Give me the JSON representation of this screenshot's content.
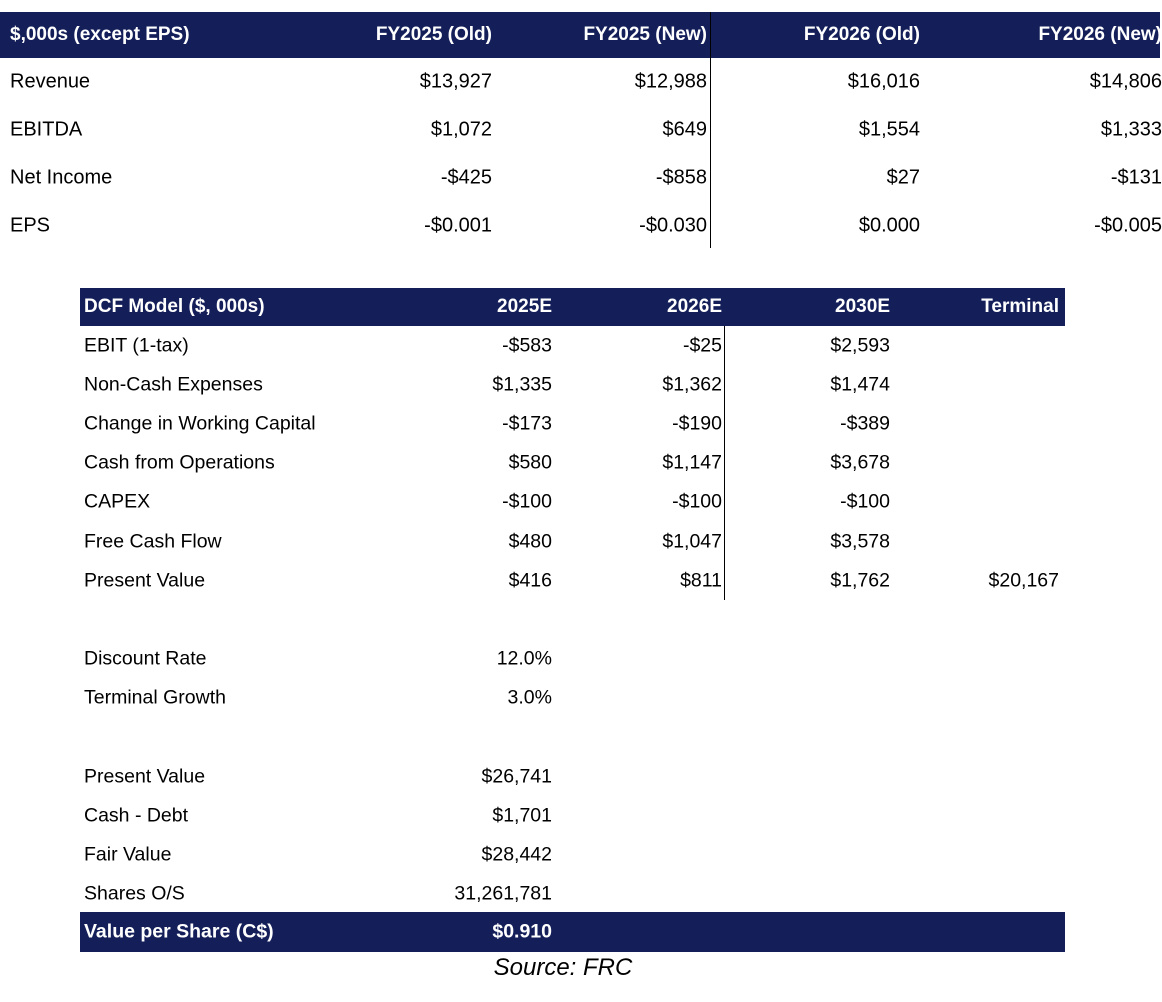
{
  "estimates": {
    "headers": [
      "$,000s (except EPS)",
      "FY2025 (Old)",
      "FY2025 (New)",
      "FY2026 (Old)",
      "FY2026 (New)"
    ],
    "rows": [
      [
        "Revenue",
        "$13,927",
        "$12,988",
        "$16,016",
        "$14,806"
      ],
      [
        "EBITDA",
        "$1,072",
        "$649",
        "$1,554",
        "$1,333"
      ],
      [
        "Net Income",
        "-$425",
        "-$858",
        "$27",
        "-$131"
      ],
      [
        "EPS",
        "-$0.001",
        "-$0.030",
        "$0.000",
        "-$0.005"
      ]
    ]
  },
  "dcf": {
    "headers": [
      "DCF Model ($, 000s)",
      "2025E",
      "2026E",
      "2030E",
      "Terminal"
    ],
    "rows": [
      [
        "EBIT (1-tax)",
        "-$583",
        "-$25",
        "$2,593",
        ""
      ],
      [
        "Non-Cash Expenses",
        "$1,335",
        "$1,362",
        "$1,474",
        ""
      ],
      [
        "Change in Working Capital",
        "-$173",
        "-$190",
        "-$389",
        ""
      ],
      [
        "Cash from Operations",
        "$580",
        "$1,147",
        "$3,678",
        ""
      ],
      [
        "CAPEX",
        "-$100",
        "-$100",
        "-$100",
        ""
      ],
      [
        "Free Cash Flow",
        "$480",
        "$1,047",
        "$3,578",
        ""
      ],
      [
        "Present Value",
        "$416",
        "$811",
        "$1,762",
        "$20,167"
      ]
    ],
    "assumptions": [
      [
        "Discount Rate",
        "12.0%"
      ],
      [
        "Terminal Growth",
        "3.0%"
      ]
    ],
    "valuation": [
      [
        "Present Value",
        "$26,741"
      ],
      [
        "Cash - Debt",
        "$1,701"
      ],
      [
        "Fair Value",
        "$28,442"
      ],
      [
        "Shares O/S",
        "31,261,781"
      ]
    ],
    "value_per_share": {
      "label": "Value per Share (C$)",
      "value": "$0.910"
    }
  },
  "source": "Source: FRC",
  "colors": {
    "header_bg": "#141f5a",
    "header_text": "#ffffff"
  }
}
